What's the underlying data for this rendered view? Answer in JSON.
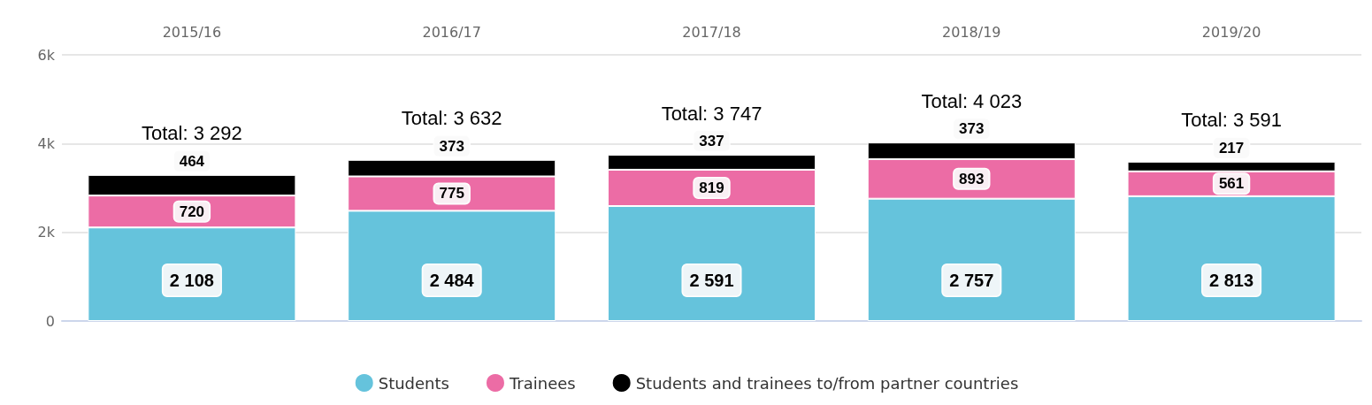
{
  "chart_data": {
    "type": "bar",
    "stacked": true,
    "categories": [
      "2015/16",
      "2016/17",
      "2017/18",
      "2018/19",
      "2019/20"
    ],
    "series": [
      {
        "name": "Students",
        "color": "#65c3dc",
        "values": [
          2108,
          2484,
          2591,
          2757,
          2813
        ],
        "value_labels": [
          "2 108",
          "2 484",
          "2 591",
          "2 757",
          "2 813"
        ]
      },
      {
        "name": "Trainees",
        "color": "#ec6ca5",
        "values": [
          720,
          775,
          819,
          893,
          561
        ],
        "value_labels": [
          "720",
          "775",
          "819",
          "893",
          "561"
        ]
      },
      {
        "name": "Students and trainees to/from partner countries",
        "color": "#000000",
        "values": [
          464,
          373,
          337,
          373,
          217
        ],
        "value_labels": [
          "464",
          "373",
          "337",
          "373",
          "217"
        ]
      }
    ],
    "totals": [
      "Total: 3 292",
      "Total: 3 632",
      "Total: 3 747",
      "Total: 4 023",
      "Total: 3 591"
    ],
    "ylim": [
      0,
      6000
    ],
    "yticks": [
      0,
      {
        "value": 2000,
        "label": "2k"
      },
      {
        "value": 4000,
        "label": "4k"
      },
      {
        "value": 6000,
        "label": "6k"
      }
    ],
    "grid": "y",
    "legend": "bottom"
  }
}
